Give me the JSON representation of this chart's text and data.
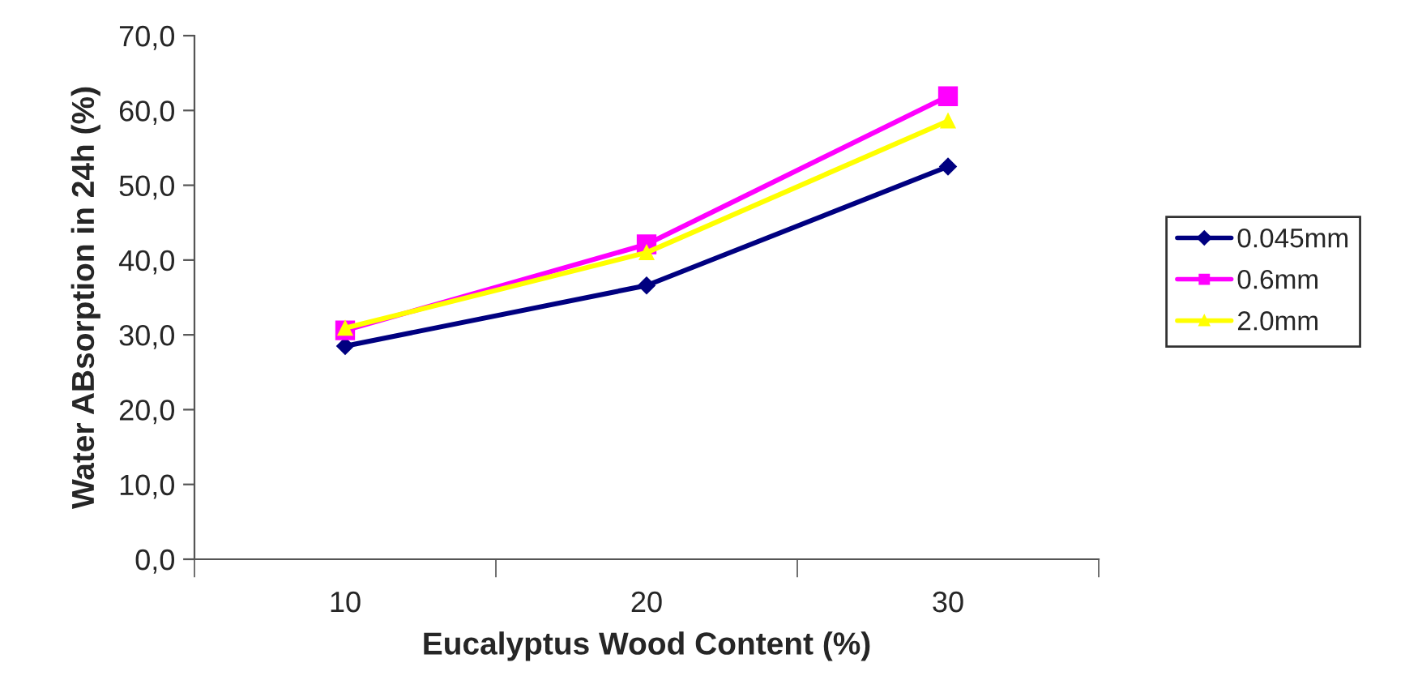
{
  "chart_data": {
    "type": "line",
    "xlabel": "Eucalyptus Wood Content (%)",
    "ylabel": "Water ABsorption in 24h (%)",
    "categories": [
      "10",
      "20",
      "30"
    ],
    "series": [
      {
        "name": "0.045mm",
        "color": "#000080",
        "marker": "diamond",
        "values": [
          28.5,
          36.6,
          52.5
        ]
      },
      {
        "name": "0.6mm",
        "color": "#ff00ff",
        "marker": "square",
        "values": [
          30.6,
          42.1,
          61.9
        ]
      },
      {
        "name": "2.0mm",
        "color": "#ffff00",
        "marker": "triangle",
        "values": [
          30.9,
          41.0,
          58.6
        ]
      }
    ],
    "ylim": [
      0,
      70
    ],
    "yticks": [
      {
        "value": 0,
        "label": "0,0"
      },
      {
        "value": 10,
        "label": "10,0"
      },
      {
        "value": 20,
        "label": "20,0"
      },
      {
        "value": 30,
        "label": "30,0"
      },
      {
        "value": 40,
        "label": "40,0"
      },
      {
        "value": 50,
        "label": "50,0"
      },
      {
        "value": 60,
        "label": "60,0"
      },
      {
        "value": 70,
        "label": "70,0"
      }
    ],
    "grid": false,
    "legend": "right",
    "line_style": "solid"
  }
}
